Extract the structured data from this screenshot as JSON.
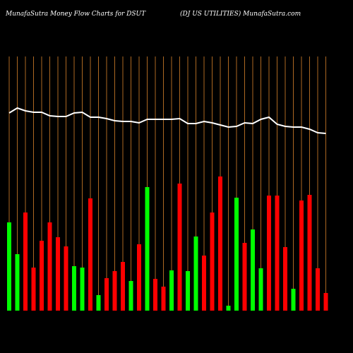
{
  "chart_data": {
    "type": "bar",
    "title": "MunafaSutra  Money Flow  Charts for DSUT",
    "subtitle": "(DJ US UTILITIES) MunafaSutra.com",
    "ylim": [
      0,
      360
    ],
    "values": [
      125,
      80,
      139,
      61,
      99,
      125,
      104,
      91,
      63,
      61,
      159,
      22,
      46,
      56,
      69,
      42,
      94,
      175,
      45,
      34,
      57,
      180,
      56,
      105,
      78,
      139,
      190,
      7,
      160,
      96,
      115,
      60,
      163,
      163,
      90,
      31,
      156,
      164,
      60,
      25
    ],
    "colors": [
      "#00ff00",
      "#00ff00",
      "#ff0000",
      "#ff0000",
      "#ff0000",
      "#ff0000",
      "#ff0000",
      "#ff0000",
      "#00ff00",
      "#00ff00",
      "#ff0000",
      "#00ff00",
      "#ff0000",
      "#ff0000",
      "#ff0000",
      "#00ff00",
      "#ff0000",
      "#00ff00",
      "#ff0000",
      "#ff0000",
      "#00ff00",
      "#ff0000",
      "#00ff00",
      "#00ff00",
      "#ff0000",
      "#ff0000",
      "#ff0000",
      "#00ff00",
      "#00ff00",
      "#ff0000",
      "#00ff00",
      "#00ff00",
      "#ff0000",
      "#ff0000",
      "#ff0000",
      "#00ff00",
      "#ff0000",
      "#ff0000",
      "#ff0000",
      "#ff0000"
    ],
    "line": {
      "color": "#ffffff",
      "values": [
        280,
        287,
        283,
        281,
        281,
        276,
        275,
        275,
        280,
        281,
        274,
        274,
        272,
        269,
        268,
        268,
        266,
        271,
        271,
        271,
        271,
        272,
        265,
        265,
        268,
        266,
        263,
        260,
        261,
        266,
        265,
        271,
        274,
        264,
        261,
        260,
        260,
        257,
        252,
        251
      ]
    },
    "grid_color": "#d9822b"
  }
}
